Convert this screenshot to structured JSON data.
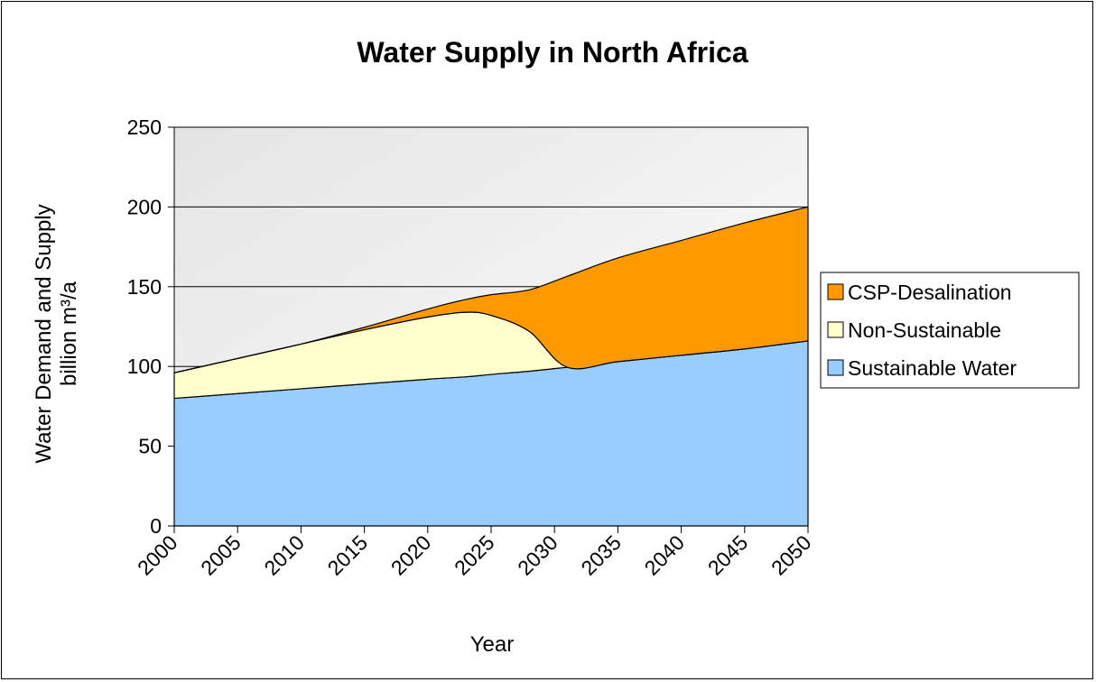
{
  "chart_data": {
    "type": "area",
    "stacked": true,
    "title": "Water Supply in North Africa",
    "xlabel": "Year",
    "ylabel_line1": "Water Demand and Supply",
    "ylabel_line2": "billion m³/a",
    "xlim": [
      2000,
      2050
    ],
    "ylim": [
      0,
      250
    ],
    "x_ticks": [
      "2000",
      "2005",
      "2010",
      "2015",
      "2020",
      "2025",
      "2030",
      "2035",
      "2040",
      "2045",
      "2050"
    ],
    "y_ticks": [
      "0",
      "50",
      "100",
      "150",
      "200",
      "250"
    ],
    "grid": "horizontal",
    "legend_position": "right",
    "x": [
      2000,
      2005,
      2010,
      2015,
      2020,
      2023,
      2025,
      2028,
      2031,
      2035,
      2040,
      2045,
      2050
    ],
    "series": [
      {
        "name": "Sustainable Water",
        "color": "#99ccff",
        "values": [
          80,
          83,
          86,
          89,
          92,
          93.5,
          95,
          97,
          99.5,
          103,
          107,
          111,
          116
        ]
      },
      {
        "name": "Non-Sustainable",
        "color": "#ffffcc",
        "values": [
          16,
          22,
          28,
          34,
          39,
          40.5,
          37,
          25,
          0,
          0,
          0,
          0,
          0
        ]
      },
      {
        "name": "CSP-Desalination",
        "color": "#ff9900",
        "values": [
          0,
          0,
          0,
          1.5,
          5,
          8,
          13,
          26,
          57,
          65,
          72,
          79,
          84
        ]
      }
    ]
  }
}
